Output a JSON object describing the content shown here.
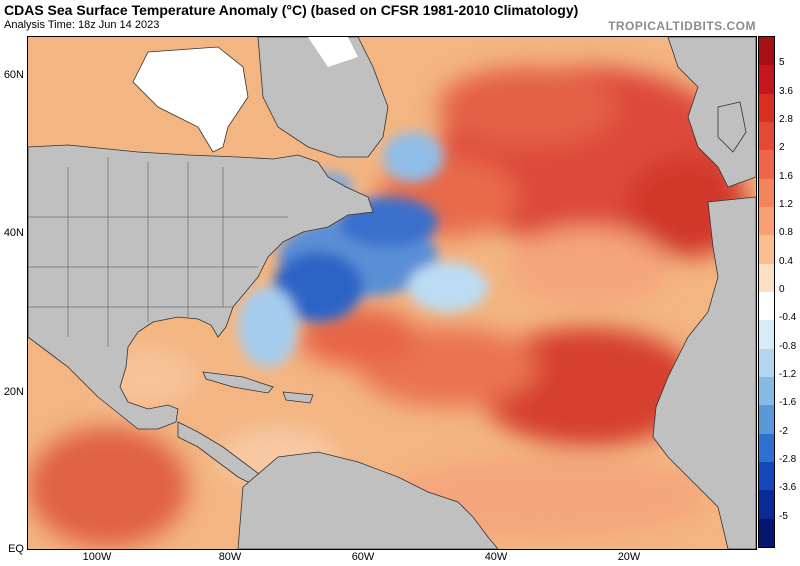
{
  "header": {
    "title": "CDAS Sea Surface Temperature Anomaly (°C) (based on CFSR 1981-2010 Climatology)",
    "subtitle": "Analysis Time: 18z Jun 14 2023",
    "brand": "TROPICALTIDBITS.COM"
  },
  "map": {
    "lat_labels": [
      "60N",
      "40N",
      "20N",
      "EQ"
    ],
    "lon_labels": [
      "100W",
      "80W",
      "60W",
      "40W",
      "20W"
    ],
    "land_color": "#c0c0c0",
    "ice_color": "#ffffff",
    "border_color": "#222222"
  },
  "colorbar": {
    "labels": [
      "5",
      "3.6",
      "2.8",
      "2",
      "1.6",
      "1.2",
      "0.8",
      "0.4",
      "0",
      "-0.4",
      "-0.8",
      "-1.2",
      "-1.6",
      "-2",
      "-2.8",
      "-3.6",
      "-5"
    ],
    "colors": [
      "#a50f15",
      "#c4161c",
      "#d7301f",
      "#e34a33",
      "#ef6548",
      "#f4845c",
      "#f7a072",
      "#fbbf8f",
      "#fde0c2",
      "#ffffff",
      "#d6ecf7",
      "#b3d6f0",
      "#85b9e6",
      "#5a98da",
      "#2f6fce",
      "#1447b8",
      "#0a2a95",
      "#06156e"
    ]
  }
}
